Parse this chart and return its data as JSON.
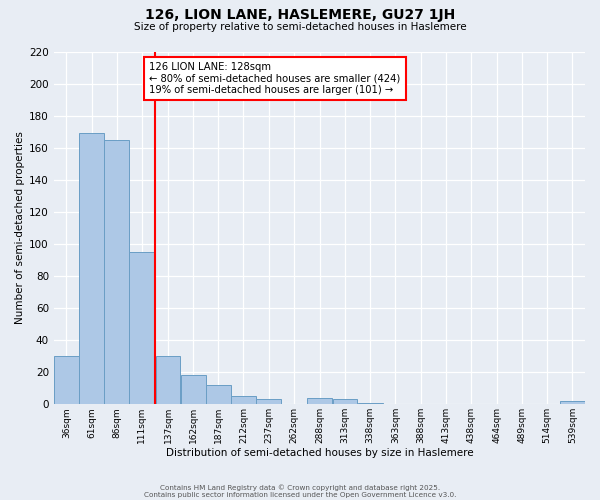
{
  "title": "126, LION LANE, HASLEMERE, GU27 1JH",
  "subtitle": "Size of property relative to semi-detached houses in Haslemere",
  "xlabel": "Distribution of semi-detached houses by size in Haslemere",
  "ylabel": "Number of semi-detached properties",
  "bin_labels": [
    "36sqm",
    "61sqm",
    "86sqm",
    "111sqm",
    "137sqm",
    "162sqm",
    "187sqm",
    "212sqm",
    "237sqm",
    "262sqm",
    "288sqm",
    "313sqm",
    "338sqm",
    "363sqm",
    "388sqm",
    "413sqm",
    "438sqm",
    "464sqm",
    "489sqm",
    "514sqm",
    "539sqm"
  ],
  "bin_edges": [
    36,
    61,
    86,
    111,
    137,
    162,
    187,
    212,
    237,
    262,
    288,
    313,
    338,
    363,
    388,
    413,
    438,
    464,
    489,
    514,
    539
  ],
  "counts": [
    30,
    169,
    165,
    95,
    30,
    18,
    12,
    5,
    3,
    0,
    4,
    3,
    1,
    0,
    0,
    0,
    0,
    0,
    0,
    0,
    2
  ],
  "bar_color": "#adc8e6",
  "bar_edge_color": "#6a9ec5",
  "bg_color": "#e8edf4",
  "grid_color": "#ffffff",
  "vline_color": "red",
  "annotation_text": "126 LION LANE: 128sqm\n← 80% of semi-detached houses are smaller (424)\n19% of semi-detached houses are larger (101) →",
  "annotation_box_color": "white",
  "annotation_box_edge": "red",
  "ylim": [
    0,
    220
  ],
  "yticks": [
    0,
    20,
    40,
    60,
    80,
    100,
    120,
    140,
    160,
    180,
    200,
    220
  ],
  "footer1": "Contains HM Land Registry data © Crown copyright and database right 2025.",
  "footer2": "Contains public sector information licensed under the Open Government Licence v3.0."
}
